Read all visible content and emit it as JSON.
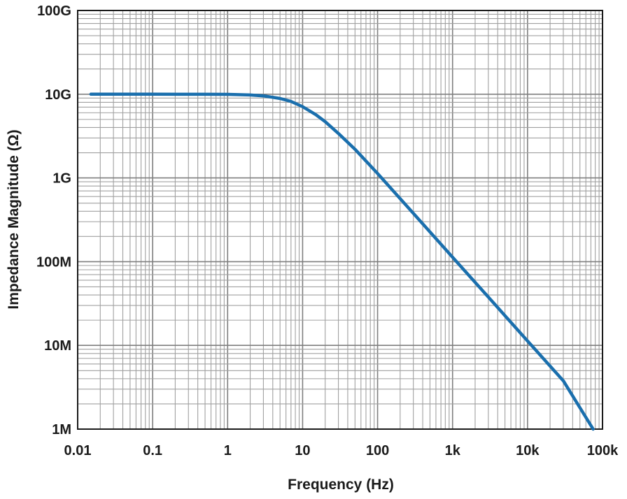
{
  "chart_data": {
    "type": "line",
    "xlabel": "Frequency (Hz)",
    "ylabel": "Impedance Magnitude (Ω)",
    "x_scale": "log",
    "y_scale": "log",
    "xlim": [
      0.01,
      100000
    ],
    "ylim": [
      1000000,
      100000000000
    ],
    "x_ticks": [
      {
        "value": 0.01,
        "label": "0.01"
      },
      {
        "value": 0.1,
        "label": "0.1"
      },
      {
        "value": 1,
        "label": "1"
      },
      {
        "value": 10,
        "label": "10"
      },
      {
        "value": 100,
        "label": "100"
      },
      {
        "value": 1000,
        "label": "1k"
      },
      {
        "value": 10000,
        "label": "10k"
      },
      {
        "value": 100000,
        "label": "100k"
      }
    ],
    "y_ticks": [
      {
        "value": 1000000,
        "label": "1M"
      },
      {
        "value": 10000000,
        "label": "10M"
      },
      {
        "value": 100000000,
        "label": "100M"
      },
      {
        "value": 1000000000,
        "label": "1G"
      },
      {
        "value": 10000000000,
        "label": "10G"
      },
      {
        "value": 100000000000,
        "label": "100G"
      }
    ],
    "grid": true,
    "series": [
      {
        "color": "#1a6fad",
        "x": [
          0.015,
          0.1,
          0.5,
          1,
          2,
          3,
          5,
          7,
          10,
          15,
          20,
          30,
          50,
          100,
          300,
          1000,
          3000,
          10000,
          30000,
          75000
        ],
        "y": [
          10000000000,
          10000000000,
          9990000000,
          9950000000,
          9800000000,
          9550000000,
          8900000000,
          8200000000,
          7100000000,
          5700000000,
          4700000000,
          3400000000,
          2200000000,
          1130000000,
          378000000,
          113000000,
          37800000,
          11300000,
          3780000,
          1000000
        ]
      }
    ]
  }
}
